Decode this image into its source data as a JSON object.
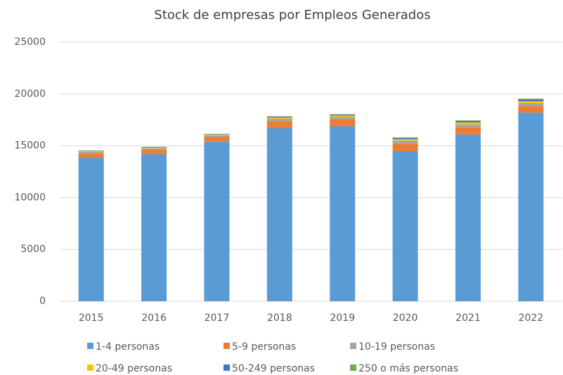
{
  "chart_data": {
    "type": "stacked_bar",
    "title": "Stock de empresas por Empleos Generados",
    "categories": [
      "2015",
      "2016",
      "2017",
      "2018",
      "2019",
      "2020",
      "2021",
      "2022"
    ],
    "series": [
      {
        "name": "1-4 personas",
        "color": "#5b9bd5",
        "values": [
          13820,
          14200,
          15400,
          16700,
          16900,
          14500,
          16100,
          18200
        ]
      },
      {
        "name": "5-9 personas",
        "color": "#ed7d31",
        "values": [
          450,
          400,
          450,
          650,
          650,
          700,
          650,
          600
        ]
      },
      {
        "name": "10-19 personas",
        "color": "#a5a5a5",
        "values": [
          150,
          150,
          150,
          250,
          250,
          300,
          300,
          300
        ]
      },
      {
        "name": "20-49 personas",
        "color": "#ffc000",
        "values": [
          80,
          80,
          80,
          120,
          120,
          150,
          200,
          200
        ]
      },
      {
        "name": "50-249 personas",
        "color": "#4472c4",
        "values": [
          30,
          40,
          40,
          80,
          80,
          100,
          130,
          150
        ]
      },
      {
        "name": "250 o más personas",
        "color": "#70ad47",
        "values": [
          20,
          30,
          30,
          50,
          50,
          50,
          70,
          100
        ]
      }
    ],
    "ylim": [
      0,
      25000
    ],
    "yticks": [
      0,
      5000,
      10000,
      15000,
      20000,
      25000
    ],
    "grid": true,
    "legend": "bottom"
  }
}
